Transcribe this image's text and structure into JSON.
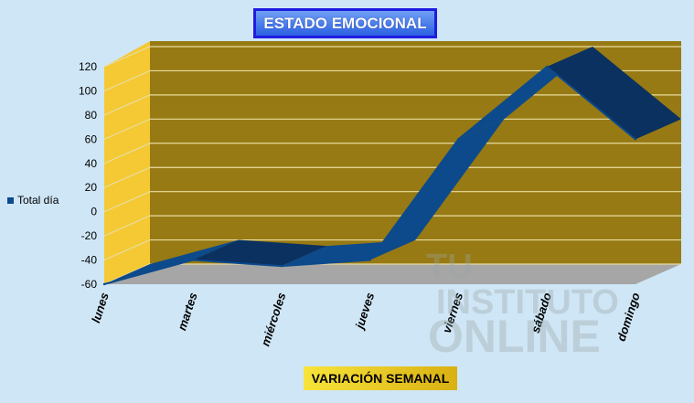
{
  "chart_data": {
    "type": "area",
    "title": "ESTADO EMOCIONAL",
    "xlabel": "VARIACIÓN SEMANAL",
    "ylabel": "",
    "categories": [
      "lunes",
      "martes",
      "miércoles",
      "jueves",
      "viernes",
      "sábado",
      "domingo"
    ],
    "series": [
      {
        "name": "Total día",
        "values": [
          -60,
          -40,
          -45,
          -40,
          60,
          120,
          60
        ]
      }
    ],
    "ylim": [
      -60,
      120
    ],
    "yticks": [
      -60,
      -40,
      -20,
      0,
      20,
      40,
      60,
      80,
      100,
      120
    ],
    "grid": true,
    "legend": "left",
    "three_d": true,
    "colors": {
      "series": "#0c4a8c",
      "series_dark": "#0a3160",
      "back_wall": "#977a13",
      "side_wall": "#f4c933",
      "floor": "#a6a6a6",
      "grid": "#e8dca0",
      "background": "#cfe6f6"
    }
  },
  "watermark": {
    "text": "TU INSTITUTO ONLINE"
  }
}
